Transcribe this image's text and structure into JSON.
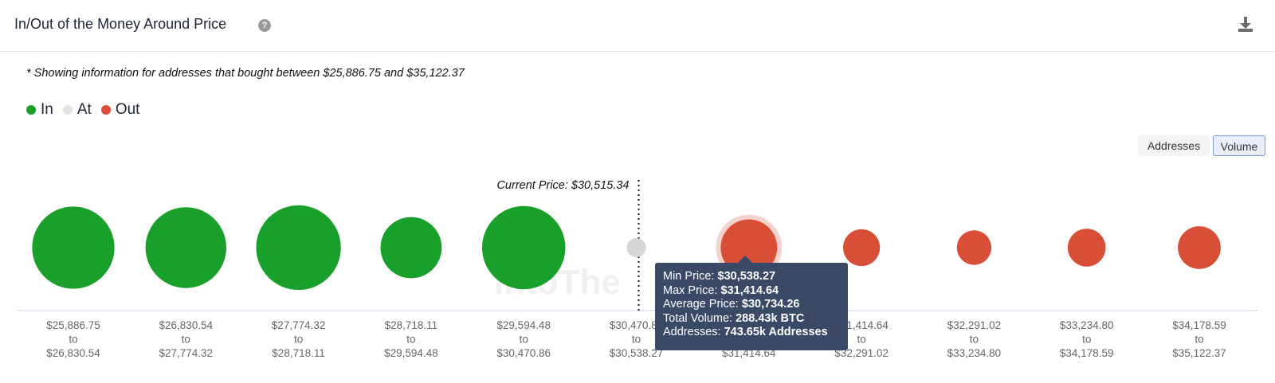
{
  "header": {
    "title": "In/Out of the Money Around Price",
    "help_icon": "question-circle-icon",
    "download_icon": "download-icon"
  },
  "note": "* Showing information for addresses that bought between $25,886.75 and $35,122.37",
  "legend": [
    {
      "label": "In",
      "color": "#18a02a"
    },
    {
      "label": "At",
      "color": "#e3e3e3"
    },
    {
      "label": "Out",
      "color": "#d94e36"
    }
  ],
  "toggles": {
    "addresses": "Addresses",
    "volume": "Volume",
    "active": "Volume"
  },
  "watermark": "intoThe",
  "chart_data": {
    "type": "scatter",
    "subtype": "bubble",
    "current_price_label": "Current Price: $30,515.34",
    "current_price": 30515.34,
    "buckets": [
      {
        "from": "$25,886.75",
        "to": "$26,830.54",
        "status": "In",
        "relative_volume": 0.85
      },
      {
        "from": "$26,830.54",
        "to": "$27,774.32",
        "status": "In",
        "relative_volume": 0.82
      },
      {
        "from": "$27,774.32",
        "to": "$28,718.11",
        "status": "In",
        "relative_volume": 0.9
      },
      {
        "from": "$28,718.11",
        "to": "$29,594.48",
        "status": "In",
        "relative_volume": 0.47
      },
      {
        "from": "$29,594.48",
        "to": "$30,470.86",
        "status": "In",
        "relative_volume": 0.87
      },
      {
        "from": "$30,470.86",
        "to": "$30,538.27",
        "status": "At",
        "relative_volume": 0.03
      },
      {
        "from": "$30,538.27",
        "to": "$31,414.64",
        "status": "Out",
        "relative_volume": 0.4
      },
      {
        "from": "$31,414.64",
        "to": "$32,291.02",
        "status": "Out",
        "relative_volume": 0.17
      },
      {
        "from": "$32,291.02",
        "to": "$33,234.80",
        "status": "Out",
        "relative_volume": 0.15
      },
      {
        "from": "$33,234.80",
        "to": "$34,178.59",
        "status": "Out",
        "relative_volume": 0.18
      },
      {
        "from": "$34,178.59",
        "to": "$35,122.37",
        "status": "Out",
        "relative_volume": 0.23
      }
    ],
    "to_word": "to",
    "tooltip": {
      "bucket_index": 6,
      "rows": [
        {
          "label": "Min Price:",
          "value": "$30,538.27"
        },
        {
          "label": "Max Price:",
          "value": "$31,414.64"
        },
        {
          "label": "Average Price:",
          "value": "$30,734.26"
        },
        {
          "label": "Total Volume:",
          "value": "288.43k BTC"
        },
        {
          "label": "Addresses:",
          "value": "743.65k Addresses"
        }
      ]
    }
  }
}
